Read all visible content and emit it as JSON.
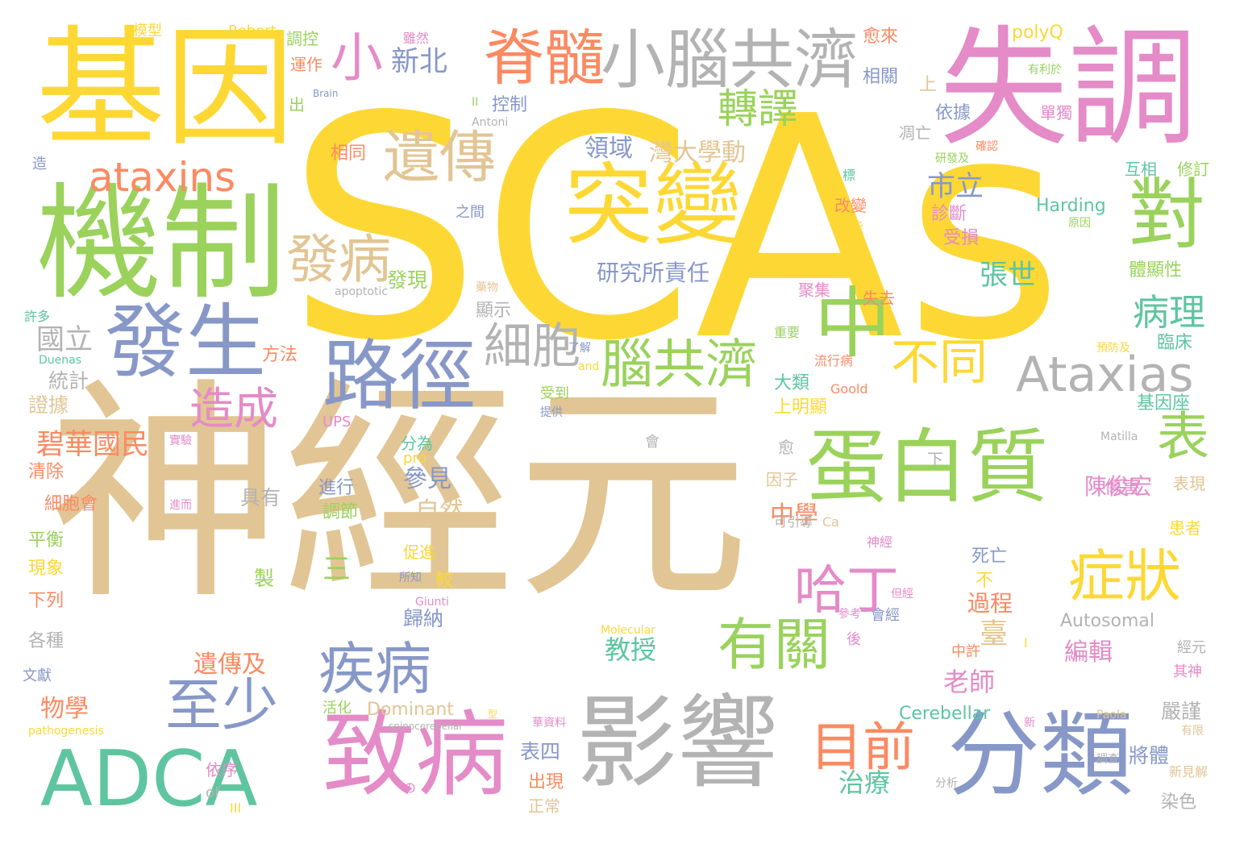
{
  "palette": {
    "yellow": "#fdd835",
    "tan": "#e2c594",
    "green": "#9ad25b",
    "teal": "#5ec5a0",
    "pink": "#e48bc8",
    "blue": "#8798c8",
    "orange": "#fb8a62",
    "gray": "#b3b3b3"
  },
  "words": [
    {
      "text": "SCAs",
      "color": "yellow"
    },
    {
      "text": "神經元",
      "color": "tan"
    },
    {
      "text": "基因",
      "color": "yellow"
    },
    {
      "text": "失調",
      "color": "pink"
    },
    {
      "text": "機制",
      "color": "green"
    },
    {
      "text": "影響",
      "color": "gray"
    },
    {
      "text": "ADCA",
      "color": "teal"
    },
    {
      "text": "致病",
      "color": "pink"
    },
    {
      "text": "分類",
      "color": "blue"
    },
    {
      "text": "突變",
      "color": "yellow"
    },
    {
      "text": "蛋白質",
      "color": "green"
    },
    {
      "text": "發生",
      "color": "blue"
    },
    {
      "text": "小腦共濟",
      "color": "gray"
    },
    {
      "text": "脊髓",
      "color": "orange"
    },
    {
      "text": "路徑",
      "color": "blue"
    },
    {
      "text": "中",
      "color": "green"
    },
    {
      "text": "對",
      "color": "green"
    },
    {
      "text": "遺傳",
      "color": "tan"
    },
    {
      "text": "ataxins",
      "color": "orange"
    },
    {
      "text": "Ataxias",
      "color": "gray"
    },
    {
      "text": "小",
      "color": "pink"
    },
    {
      "text": "腦共濟",
      "color": "green"
    },
    {
      "text": "疾病",
      "color": "blue"
    },
    {
      "text": "有關",
      "color": "green"
    },
    {
      "text": "症狀",
      "color": "yellow"
    },
    {
      "text": "至少",
      "color": "blue"
    },
    {
      "text": "目前",
      "color": "orange"
    },
    {
      "text": "哈丁",
      "color": "pink"
    },
    {
      "text": "表",
      "color": "green"
    },
    {
      "text": "發病",
      "color": "tan"
    },
    {
      "text": "細胞",
      "color": "gray"
    },
    {
      "text": "不同",
      "color": "yellow"
    },
    {
      "text": "轉譯",
      "color": "green"
    },
    {
      "text": "造成",
      "color": "pink"
    },
    {
      "text": "新北",
      "color": "blue"
    },
    {
      "text": "病理",
      "color": "teal"
    },
    {
      "text": "碧華國民",
      "color": "orange"
    },
    {
      "text": "張世",
      "color": "teal"
    },
    {
      "text": "市立",
      "color": "blue"
    },
    {
      "text": "研究所責任",
      "color": "blue"
    },
    {
      "text": "灣大學動",
      "color": "tan"
    },
    {
      "text": "領域",
      "color": "blue"
    },
    {
      "text": "國立",
      "color": "gray"
    },
    {
      "text": "遺傳及",
      "color": "orange"
    },
    {
      "text": "物學",
      "color": "orange"
    },
    {
      "text": "參見",
      "color": "blue"
    },
    {
      "text": "自然",
      "color": "tan"
    },
    {
      "text": "中學",
      "color": "orange"
    },
    {
      "text": "教授",
      "color": "teal"
    },
    {
      "text": "老師",
      "color": "pink"
    },
    {
      "text": "治療",
      "color": "teal"
    },
    {
      "text": "陳俊宏",
      "color": "pink"
    },
    {
      "text": "編輯",
      "color": "pink"
    },
    {
      "text": "臺",
      "color": "tan"
    },
    {
      "text": "過程",
      "color": "orange"
    },
    {
      "text": "歸納",
      "color": "blue"
    },
    {
      "text": "三",
      "color": "green"
    },
    {
      "text": "製",
      "color": "green"
    },
    {
      "text": "具有",
      "color": "gray"
    },
    {
      "text": "進行",
      "color": "blue"
    },
    {
      "text": "調節",
      "color": "green"
    },
    {
      "text": "表四",
      "color": "blue"
    },
    {
      "text": "出現",
      "color": "orange"
    },
    {
      "text": "正常",
      "color": "tan"
    },
    {
      "text": "將體",
      "color": "blue"
    },
    {
      "text": "染色",
      "color": "gray"
    },
    {
      "text": "嚴謹",
      "color": "gray"
    },
    {
      "text": "Cerebellar",
      "color": "teal"
    },
    {
      "text": "Dominant",
      "color": "tan"
    },
    {
      "text": "Autosomal",
      "color": "gray"
    },
    {
      "text": "Harding",
      "color": "teal"
    },
    {
      "text": "控制",
      "color": "blue"
    },
    {
      "text": "依據",
      "color": "blue"
    },
    {
      "text": "相同",
      "color": "orange"
    },
    {
      "text": "之間",
      "color": "blue"
    },
    {
      "text": "發現",
      "color": "green"
    },
    {
      "text": "顯示",
      "color": "gray"
    },
    {
      "text": "方法",
      "color": "orange"
    },
    {
      "text": "統計",
      "color": "gray"
    },
    {
      "text": "證據",
      "color": "tan"
    },
    {
      "text": "清除",
      "color": "orange"
    },
    {
      "text": "細胞會",
      "color": "orange"
    },
    {
      "text": "平衡",
      "color": "green"
    },
    {
      "text": "現象",
      "color": "yellow"
    },
    {
      "text": "下列",
      "color": "orange"
    },
    {
      "text": "各種",
      "color": "gray"
    },
    {
      "text": "文獻",
      "color": "blue"
    },
    {
      "text": "許多",
      "color": "teal"
    },
    {
      "text": "造",
      "color": "blue"
    },
    {
      "text": "模型",
      "color": "yellow"
    },
    {
      "text": "Robert",
      "color": "yellow"
    },
    {
      "text": "調控",
      "color": "green"
    },
    {
      "text": "運作",
      "color": "orange"
    },
    {
      "text": "雖然",
      "color": "pink"
    },
    {
      "text": "愈來",
      "color": "orange"
    },
    {
      "text": "相關",
      "color": "blue"
    },
    {
      "text": "polyQ",
      "color": "yellow"
    },
    {
      "text": "上",
      "color": "tan"
    },
    {
      "text": "有利於",
      "color": "green"
    },
    {
      "text": "單獨",
      "color": "pink"
    },
    {
      "text": "Antoni",
      "color": "gray"
    },
    {
      "text": "Brain",
      "color": "blue"
    },
    {
      "text": "出",
      "color": "green"
    },
    {
      "text": "II",
      "color": "green"
    },
    {
      "text": "凋亡",
      "color": "gray"
    },
    {
      "text": "研發及",
      "color": "green"
    },
    {
      "text": "確認",
      "color": "orange"
    },
    {
      "text": "互相",
      "color": "teal"
    },
    {
      "text": "修訂",
      "color": "green"
    },
    {
      "text": "標",
      "color": "teal"
    },
    {
      "text": "改變",
      "color": "orange"
    },
    {
      "text": "功能",
      "color": "yellow"
    },
    {
      "text": "原因",
      "color": "green"
    },
    {
      "text": "診斷",
      "color": "pink"
    },
    {
      "text": "受損",
      "color": "pink"
    },
    {
      "text": "體顯性",
      "color": "green"
    },
    {
      "text": "聚集",
      "color": "pink"
    },
    {
      "text": "失去",
      "color": "orange"
    },
    {
      "text": "藥物",
      "color": "tan"
    },
    {
      "text": "apoptotic",
      "color": "gray"
    },
    {
      "text": "重要",
      "color": "green"
    },
    {
      "text": "流行病",
      "color": "orange"
    },
    {
      "text": "了解",
      "color": "blue"
    },
    {
      "text": "and",
      "color": "yellow"
    },
    {
      "text": "Goold",
      "color": "orange"
    },
    {
      "text": "預防及",
      "color": "yellow"
    },
    {
      "text": "臨床",
      "color": "teal"
    },
    {
      "text": "基因座",
      "color": "teal"
    },
    {
      "text": "大類",
      "color": "teal"
    },
    {
      "text": "上明顯",
      "color": "yellow"
    },
    {
      "text": "受到",
      "color": "green"
    },
    {
      "text": "提供",
      "color": "blue"
    },
    {
      "text": "UPS",
      "color": "pink"
    },
    {
      "text": "Duenas",
      "color": "teal"
    },
    {
      "text": "分為",
      "color": "teal"
    },
    {
      "text": "pro",
      "color": "yellow"
    },
    {
      "text": "會",
      "color": "gray"
    },
    {
      "text": "愈",
      "color": "gray"
    },
    {
      "text": "下",
      "color": "gray"
    },
    {
      "text": "Matilla",
      "color": "gray"
    },
    {
      "text": "傷害",
      "color": "pink"
    },
    {
      "text": "表現",
      "color": "tan"
    },
    {
      "text": "因子",
      "color": "tan"
    },
    {
      "text": "患者",
      "color": "yellow"
    },
    {
      "text": "可引導",
      "color": "gray"
    },
    {
      "text": "Ca",
      "color": "tan"
    },
    {
      "text": "神經",
      "color": "pink"
    },
    {
      "text": "死亡",
      "color": "blue"
    },
    {
      "text": "不",
      "color": "yellow"
    },
    {
      "text": "所知",
      "color": "blue"
    },
    {
      "text": "較",
      "color": "yellow"
    },
    {
      "text": "Giunti",
      "color": "pink"
    },
    {
      "text": "促進",
      "color": "yellow"
    },
    {
      "text": "但經",
      "color": "pink"
    },
    {
      "text": "參考",
      "color": "pink"
    },
    {
      "text": "會經",
      "color": "blue"
    },
    {
      "text": "後",
      "color": "pink"
    },
    {
      "text": "Molecular",
      "color": "yellow"
    },
    {
      "text": "中許",
      "color": "orange"
    },
    {
      "text": "I",
      "color": "yellow"
    },
    {
      "text": "經元",
      "color": "gray"
    },
    {
      "text": "其神",
      "color": "pink"
    },
    {
      "text": "活化",
      "color": "green"
    },
    {
      "text": "華資料",
      "color": "pink"
    },
    {
      "text": "spinocerebellar",
      "color": "gray"
    },
    {
      "text": "pathogenesis",
      "color": "yellow"
    },
    {
      "text": "實驗",
      "color": "pink"
    },
    {
      "text": "進而",
      "color": "pink"
    },
    {
      "text": "依序",
      "color": "pink"
    },
    {
      "text": "of",
      "color": "gray"
    },
    {
      "text": "の",
      "color": "pink"
    },
    {
      "text": "III",
      "color": "yellow"
    },
    {
      "text": "分析",
      "color": "gray"
    },
    {
      "text": "新",
      "color": "pink"
    },
    {
      "text": "Paola",
      "color": "tan"
    },
    {
      "text": "有限",
      "color": "tan"
    },
    {
      "text": "新見解",
      "color": "tan"
    },
    {
      "text": "調查",
      "color": "gray"
    },
    {
      "text": "型",
      "color": "yellow"
    }
  ]
}
